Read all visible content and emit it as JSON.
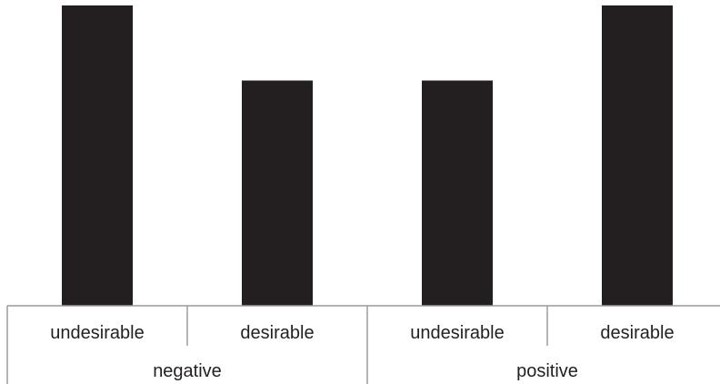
{
  "chart_data": {
    "type": "bar",
    "categories": [
      "undesirable",
      "desirable",
      "undesirable",
      "desirable"
    ],
    "groups": [
      {
        "label": "negative",
        "categories": [
          "undesirable",
          "desirable"
        ]
      },
      {
        "label": "positive",
        "categories": [
          "undesirable",
          "desirable"
        ]
      }
    ],
    "values": [
      100,
      75,
      75,
      100
    ],
    "ylim": [
      0,
      100
    ],
    "grid": false,
    "bar_color": "#231f20",
    "axis_color": "#9a9a9a"
  }
}
